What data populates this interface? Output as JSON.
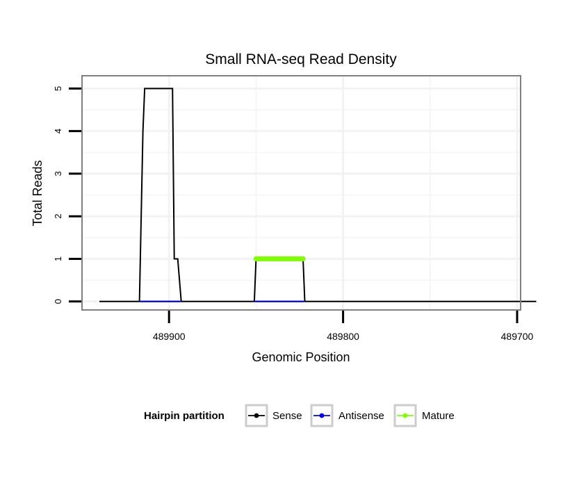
{
  "colors": {
    "sense": "#000000",
    "antisense": "#0000ff",
    "mature": "#7fff00",
    "grid": "#f2f2f2",
    "panel_border": "#7f7f7f",
    "legend_key_border": "#cccccc"
  },
  "chart_data": {
    "type": "line",
    "title": "Small RNA-seq Read Density",
    "xlabel": "Genomic Position",
    "ylabel": "Total Reads",
    "x_reversed": true,
    "xlim": [
      489950,
      489698
    ],
    "ylim": [
      -0.2,
      5.3
    ],
    "xticks": [
      489900,
      489800,
      489700
    ],
    "xtick_labels": [
      "489900",
      "489800",
      "489700"
    ],
    "x_minor_grid": [
      489850,
      489750
    ],
    "yticks": [
      0,
      1,
      2,
      3,
      4,
      5
    ],
    "ytick_labels": [
      "0",
      "1",
      "2",
      "3",
      "4",
      "5"
    ],
    "y_minor_grid": [
      0.5,
      1.5,
      2.5,
      3.5,
      4.5
    ],
    "grid": true,
    "legend": {
      "title": "Hairpin partition",
      "position": "bottom",
      "entries": [
        {
          "name": "Sense",
          "color": "#000000"
        },
        {
          "name": "Antisense",
          "color": "#0000ff"
        },
        {
          "name": "Mature",
          "color": "#7fff00"
        }
      ]
    },
    "series": [
      {
        "name": "Sense",
        "color": "#000000",
        "points": [
          [
            489940,
            0
          ],
          [
            489917,
            0
          ],
          [
            489915,
            4
          ],
          [
            489914,
            5
          ],
          [
            489898,
            5
          ],
          [
            489897,
            1
          ],
          [
            489895,
            1
          ],
          [
            489893,
            0
          ],
          [
            489851,
            0
          ],
          [
            489850,
            1
          ],
          [
            489823,
            1
          ],
          [
            489822,
            0
          ],
          [
            489689,
            0
          ]
        ]
      },
      {
        "name": "Antisense",
        "color": "#0000ff",
        "points": [
          [
            489917,
            0
          ],
          [
            489893,
            0
          ],
          [
            489851,
            0
          ],
          [
            489822,
            0
          ]
        ]
      },
      {
        "name": "Mature",
        "color": "#7fff00",
        "points": [
          [
            489850,
            1
          ],
          [
            489849,
            1
          ],
          [
            489848,
            1
          ],
          [
            489847,
            1
          ],
          [
            489846,
            1
          ],
          [
            489845,
            1
          ],
          [
            489844,
            1
          ],
          [
            489843,
            1
          ],
          [
            489842,
            1
          ],
          [
            489841,
            1
          ],
          [
            489840,
            1
          ],
          [
            489839,
            1
          ],
          [
            489838,
            1
          ],
          [
            489837,
            1
          ],
          [
            489836,
            1
          ],
          [
            489835,
            1
          ],
          [
            489834,
            1
          ],
          [
            489833,
            1
          ],
          [
            489832,
            1
          ],
          [
            489831,
            1
          ],
          [
            489830,
            1
          ],
          [
            489829,
            1
          ],
          [
            489828,
            1
          ],
          [
            489827,
            1
          ],
          [
            489826,
            1
          ],
          [
            489825,
            1
          ],
          [
            489824,
            1
          ],
          [
            489823,
            1
          ]
        ]
      }
    ]
  }
}
